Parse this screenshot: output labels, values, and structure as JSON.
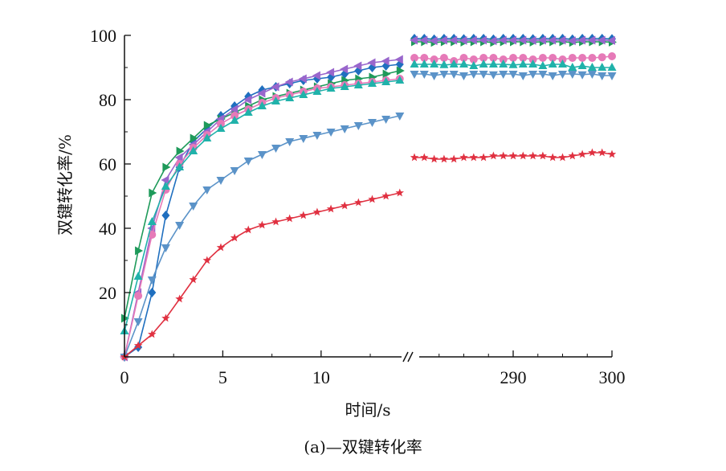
{
  "chart_data": {
    "type": "line",
    "title": "",
    "xlabel": "时间/s",
    "ylabel": "双键转化率/%",
    "caption": "(a)—双键转化率",
    "ylim": [
      0,
      100
    ],
    "y_ticks": [
      20,
      40,
      60,
      80,
      100
    ],
    "x_segments": [
      {
        "xlim": [
          0,
          14.5
        ],
        "ticks": [
          0,
          5,
          10
        ],
        "tick_labels": [
          "0",
          "5",
          "10"
        ]
      },
      {
        "xlim": [
          280,
          300
        ],
        "ticks": [
          290,
          300
        ],
        "tick_labels": [
          "290",
          "300"
        ]
      }
    ],
    "axis_break": "//",
    "series": [
      {
        "name": "series-1-dark-blue-diamond",
        "color": "#1f6fbf",
        "marker": "diamond",
        "seg1": {
          "x": [
            0,
            0.7,
            1.4,
            2.1,
            2.8,
            3.5,
            4.2,
            4.9,
            5.6,
            6.3,
            7.0,
            7.7,
            8.4,
            9.1,
            9.8,
            10.5,
            11.2,
            11.9,
            12.6,
            13.3,
            14.0
          ],
          "y": [
            0,
            3,
            20,
            44,
            59,
            67,
            71,
            75,
            78,
            81,
            83,
            84,
            85,
            86,
            86.5,
            87,
            88,
            89,
            90,
            90.5,
            91
          ]
        },
        "seg2": {
          "x": [
            280,
            281,
            282,
            283,
            284,
            285,
            286,
            287,
            288,
            289,
            290,
            291,
            292,
            293,
            294,
            295,
            296,
            297,
            298,
            299,
            300
          ],
          "y": [
            99,
            99,
            98.8,
            99,
            99,
            98.9,
            99,
            99,
            98.8,
            99,
            99,
            99,
            98.9,
            99,
            99,
            99,
            98.8,
            99,
            99,
            99,
            98.9
          ]
        }
      },
      {
        "name": "series-2-green-triangle-right",
        "color": "#1e9a5a",
        "marker": "triangle-right",
        "seg1": {
          "x": [
            0,
            0.7,
            1.4,
            2.1,
            2.8,
            3.5,
            4.2,
            4.9,
            5.6,
            6.3,
            7.0,
            7.7,
            8.4,
            9.1,
            9.8,
            10.5,
            11.2,
            11.9,
            12.6,
            13.3,
            14.0
          ],
          "y": [
            12,
            33,
            51,
            59,
            64,
            68,
            72,
            74,
            76,
            78,
            80,
            81,
            82,
            83,
            84,
            85,
            86,
            86.5,
            87,
            88,
            89
          ]
        },
        "seg2": {
          "x": [
            280,
            281,
            282,
            283,
            284,
            285,
            286,
            287,
            288,
            289,
            290,
            291,
            292,
            293,
            294,
            295,
            296,
            297,
            298,
            299,
            300
          ],
          "y": [
            98,
            98,
            97.8,
            98,
            98,
            97.9,
            98,
            98,
            97.8,
            98,
            98,
            98,
            97.9,
            98,
            98,
            98,
            97.8,
            98,
            98,
            98,
            97.9
          ]
        }
      },
      {
        "name": "series-3-purple-triangle-left",
        "color": "#9966cc",
        "marker": "triangle-left",
        "seg1": {
          "x": [
            0,
            0.7,
            1.4,
            2.1,
            2.8,
            3.5,
            4.2,
            4.9,
            5.6,
            6.3,
            7.0,
            7.7,
            8.4,
            9.1,
            9.8,
            10.5,
            11.2,
            11.9,
            12.6,
            13.3,
            14.0
          ],
          "y": [
            0,
            20,
            40,
            55,
            62,
            66,
            70,
            74,
            77,
            80,
            82,
            84,
            85.5,
            86.5,
            87.5,
            88.5,
            89.5,
            90.5,
            91.5,
            92,
            92.5
          ]
        },
        "seg2": {
          "x": [
            280,
            281,
            282,
            283,
            284,
            285,
            286,
            287,
            288,
            289,
            290,
            291,
            292,
            293,
            294,
            295,
            296,
            297,
            298,
            299,
            300
          ],
          "y": [
            98.5,
            98.5,
            98.3,
            98.5,
            98.5,
            98.4,
            98.5,
            98.5,
            98.3,
            98.5,
            98.5,
            98.5,
            98.4,
            98.5,
            98.5,
            98.5,
            98.3,
            98.5,
            98.5,
            98.5,
            98.4
          ]
        }
      },
      {
        "name": "series-4-pink-circle",
        "color": "#e67ab8",
        "marker": "circle",
        "seg1": {
          "x": [
            0,
            0.7,
            1.4,
            2.1,
            2.8,
            3.5,
            4.2,
            4.9,
            5.6,
            6.3,
            7.0,
            7.7,
            8.4,
            9.1,
            9.8,
            10.5,
            11.2,
            11.9,
            12.6,
            13.3,
            14.0
          ],
          "y": [
            0,
            19,
            38,
            52,
            60,
            65,
            69,
            72.5,
            75,
            77,
            79,
            80.5,
            81.5,
            82.5,
            83.5,
            84,
            84.5,
            85,
            85.5,
            86,
            86.5
          ]
        },
        "seg2": {
          "x": [
            280,
            281,
            282,
            283,
            284,
            285,
            286,
            287,
            288,
            289,
            290,
            291,
            292,
            293,
            294,
            295,
            296,
            297,
            298,
            299,
            300
          ],
          "y": [
            93,
            93,
            92.5,
            93,
            92,
            93,
            92.5,
            93,
            93,
            92.5,
            93,
            93,
            92.5,
            93,
            93,
            92.5,
            93,
            93,
            93,
            93.2,
            93.5
          ]
        }
      },
      {
        "name": "series-5-teal-triangle-up",
        "color": "#20b2aa",
        "marker": "triangle-up",
        "seg1": {
          "x": [
            0,
            0.7,
            1.4,
            2.1,
            2.8,
            3.5,
            4.2,
            4.9,
            5.6,
            6.3,
            7.0,
            7.7,
            8.4,
            9.1,
            9.8,
            10.5,
            11.2,
            11.9,
            12.6,
            13.3,
            14.0
          ],
          "y": [
            8,
            25,
            42,
            53,
            59,
            64,
            68,
            71,
            73.5,
            76,
            78,
            79.5,
            80.5,
            81.5,
            82.5,
            83.5,
            84,
            84.5,
            85,
            85.5,
            86
          ]
        },
        "seg2": {
          "x": [
            280,
            281,
            282,
            283,
            284,
            285,
            286,
            287,
            288,
            289,
            290,
            291,
            292,
            293,
            294,
            295,
            296,
            297,
            298,
            299,
            300
          ],
          "y": [
            91,
            91,
            91,
            90.8,
            91,
            91,
            90.5,
            91,
            91,
            91,
            90.8,
            91,
            91,
            90.5,
            91,
            91,
            90,
            90.5,
            90,
            90,
            90
          ]
        }
      },
      {
        "name": "series-6-steel-blue-triangle-down",
        "color": "#5b93c8",
        "marker": "triangle-down",
        "seg1": {
          "x": [
            0,
            0.7,
            1.4,
            2.1,
            2.8,
            3.5,
            4.2,
            4.9,
            5.6,
            6.3,
            7.0,
            7.7,
            8.4,
            9.1,
            9.8,
            10.5,
            11.2,
            11.9,
            12.6,
            13.3,
            14.0
          ],
          "y": [
            0,
            11,
            24,
            34,
            41,
            47,
            52,
            55,
            58,
            61,
            63,
            65,
            67,
            68,
            69,
            70,
            71,
            72,
            73,
            74,
            75
          ]
        },
        "seg2": {
          "x": [
            280,
            281,
            282,
            283,
            284,
            285,
            286,
            287,
            288,
            289,
            290,
            291,
            292,
            293,
            294,
            295,
            296,
            297,
            298,
            299,
            300
          ],
          "y": [
            88,
            88,
            87.5,
            88,
            88,
            87.5,
            88,
            88,
            87.8,
            88,
            88,
            87.5,
            88,
            88,
            87.5,
            88,
            88,
            87.8,
            88,
            87.5,
            87.5
          ]
        }
      },
      {
        "name": "series-7-red-star",
        "color": "#e03040",
        "marker": "star",
        "seg1": {
          "x": [
            0,
            0.7,
            1.4,
            2.1,
            2.8,
            3.5,
            4.2,
            4.9,
            5.6,
            6.3,
            7.0,
            7.7,
            8.4,
            9.1,
            9.8,
            10.5,
            11.2,
            11.9,
            12.6,
            13.3,
            14.0
          ],
          "y": [
            0,
            3.5,
            7,
            12,
            18,
            24,
            30,
            34,
            37,
            39.5,
            41,
            42,
            43,
            44,
            45,
            46,
            47,
            48,
            49,
            50,
            51
          ]
        },
        "seg2": {
          "x": [
            280,
            281,
            282,
            283,
            284,
            285,
            286,
            287,
            288,
            289,
            290,
            291,
            292,
            293,
            294,
            295,
            296,
            297,
            298,
            299,
            300
          ],
          "y": [
            62,
            62,
            61.5,
            61.5,
            61.5,
            62,
            62,
            62,
            62.5,
            62.5,
            62.5,
            62.5,
            62.5,
            62.5,
            62,
            62,
            62.5,
            63,
            63.5,
            63.5,
            63
          ]
        }
      }
    ]
  }
}
